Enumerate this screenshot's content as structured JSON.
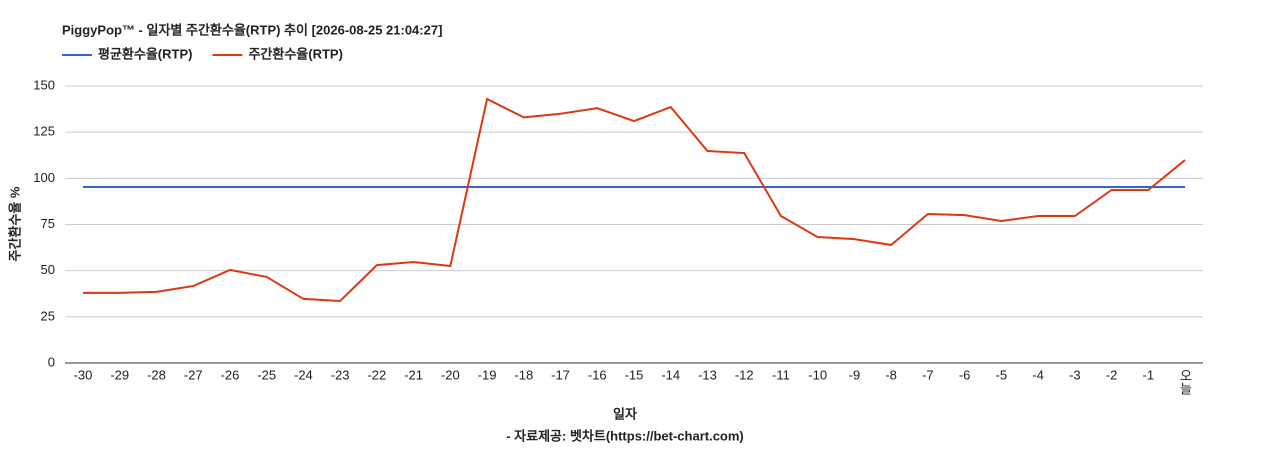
{
  "chart_data": {
    "type": "line",
    "title": "PiggyPop™ - 일자별 주간환수율(RTP) 추이 [2026-08-25 21:04:27]",
    "x_label": "일자",
    "y_label": "주간환수율 %",
    "source": "- 자료제공: 벳차트(https://bet-chart.com)",
    "categories": [
      "-30",
      "-29",
      "-28",
      "-27",
      "-26",
      "-25",
      "-24",
      "-23",
      "-22",
      "-21",
      "-20",
      "-19",
      "-18",
      "-17",
      "-16",
      "-15",
      "-14",
      "-13",
      "-12",
      "-11",
      "-10",
      "-9",
      "-8",
      "-7",
      "-6",
      "-5",
      "-4",
      "-3",
      "-2",
      "-1",
      "오늘"
    ],
    "series": [
      {
        "name": "평균환수율(RTP)",
        "color": "#3366cc",
        "values": [
          95.3,
          95.3,
          95.3,
          95.3,
          95.3,
          95.3,
          95.3,
          95.3,
          95.3,
          95.3,
          95.3,
          95.3,
          95.3,
          95.3,
          95.3,
          95.3,
          95.3,
          95.3,
          95.3,
          95.3,
          95.3,
          95.3,
          95.3,
          95.3,
          95.3,
          95.3,
          95.3,
          95.3,
          95.3,
          95.3,
          95.3
        ]
      },
      {
        "name": "주간환수율(RTP)",
        "color": "#dc3912",
        "values": [
          38,
          38,
          38.5,
          41.7,
          50.4,
          46.6,
          34.7,
          33.6,
          53,
          54.7,
          52.5,
          143,
          133,
          135,
          138,
          131,
          138.6,
          114.8,
          113.7,
          79.6,
          68.2,
          67.1,
          63.9,
          80.7,
          80.1,
          76.9,
          79.6,
          79.6,
          93.7,
          93.7,
          109.9
        ]
      }
    ],
    "ylim": [
      0,
      150
    ],
    "yticks": [
      0,
      25,
      50,
      75,
      100,
      125,
      150
    ],
    "grid": true
  }
}
